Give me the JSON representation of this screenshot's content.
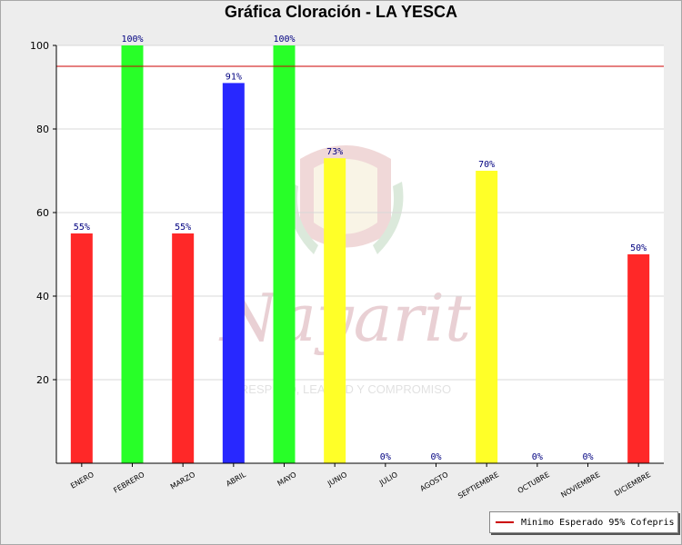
{
  "chart_data": {
    "type": "bar",
    "title": "Gráfica Cloración - LA YESCA",
    "categories": [
      "ENERO",
      "FEBRERO",
      "MARZO",
      "ABRIL",
      "MAYO",
      "JUNIO",
      "JULIO",
      "AGOSTO",
      "SEPTIEMBRE",
      "OCTUBRE",
      "NOVIEMBRE",
      "DICIEMBRE"
    ],
    "values": [
      55,
      100,
      55,
      91,
      100,
      73,
      0,
      0,
      70,
      0,
      0,
      50
    ],
    "data_labels": [
      "55%",
      "100%",
      "55%",
      "91%",
      "100%",
      "73%",
      "0%",
      "0%",
      "70%",
      "0%",
      "0%",
      "50%"
    ],
    "bar_colors": [
      "#ff2828",
      "#28ff28",
      "#ff2828",
      "#2828ff",
      "#28ff28",
      "#ffff28",
      "#ffff28",
      "#ffff28",
      "#ffff28",
      "#ff2828",
      "#ff2828",
      "#ff2828"
    ],
    "ylim": [
      0,
      100
    ],
    "yticks": [
      20,
      40,
      60,
      80,
      100
    ],
    "grid": true,
    "reference_line": {
      "value": 95,
      "label": "Minimo Esperado 95% Cofepris",
      "color": "#cc0000"
    },
    "legend_position": "bottom-right",
    "xlabel": "",
    "ylabel": ""
  },
  "watermark": {
    "line1": "Nayarit",
    "line2": "RESPETO, LEALTAD Y COMPROMISO"
  }
}
